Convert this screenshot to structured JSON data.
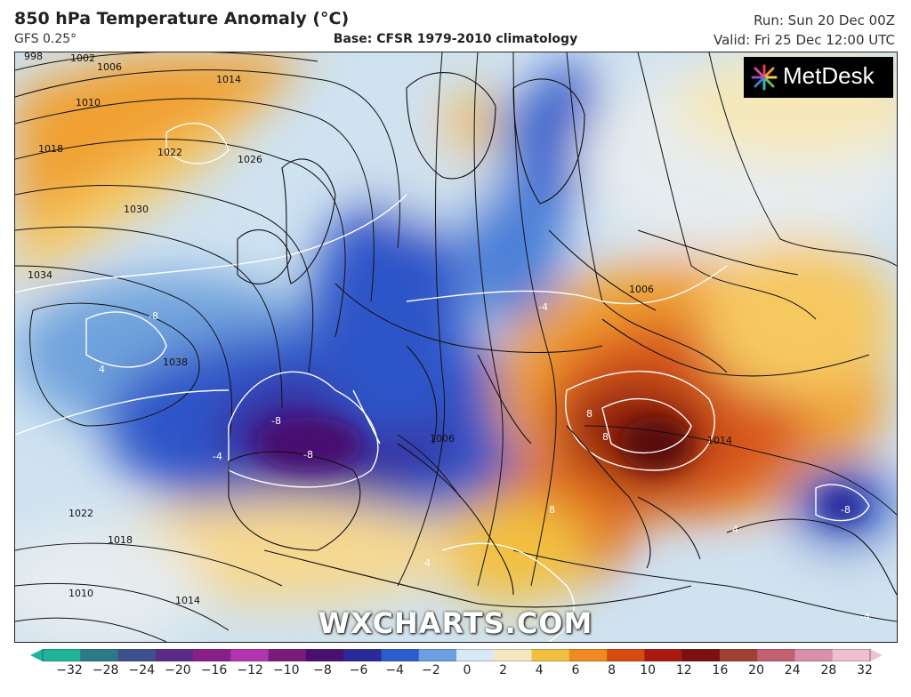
{
  "header": {
    "title": "850 hPa Temperature Anomaly (°C)",
    "model": "GFS 0.25°",
    "base": "Base: CFSR 1979-2010 climatology",
    "run": "Run: Sun 20 Dec 00Z",
    "valid": "Valid: Fri 25 Dec 12:00 UTC"
  },
  "logo": {
    "text": "MetDesk"
  },
  "watermark": "WXCHARTS.COM",
  "colorbar": {
    "ticks": [
      "−32",
      "−28",
      "−24",
      "−20",
      "−16",
      "−12",
      "−10",
      "−8",
      "−6",
      "−4",
      "−2",
      "0",
      "2",
      "4",
      "6",
      "8",
      "10",
      "12",
      "16",
      "20",
      "24",
      "28",
      "32"
    ],
    "colors": [
      "#1fb39a",
      "#2a7a8a",
      "#3d4f8c",
      "#5a2a86",
      "#8a1f8a",
      "#b234b0",
      "#7a1a7a",
      "#4a1070",
      "#2a2a9a",
      "#2d5bd0",
      "#6aa0e0",
      "#d8e8f4",
      "#f4e8c0",
      "#f2c040",
      "#f08a20",
      "#d84a10",
      "#a81a10",
      "#7a1010",
      "#a04030",
      "#c06070",
      "#d890a8",
      "#f0c0d0"
    ],
    "icon": "colorbar-arrows"
  },
  "map": {
    "isobar_labels": [
      "998",
      "1002",
      "1006",
      "1010",
      "1014",
      "1018",
      "1022",
      "1026",
      "1030",
      "1034",
      "1038",
      "1006",
      "1014",
      "1018",
      "1022",
      "1010",
      "1006",
      "1014"
    ],
    "anomaly_labels": [
      "-8",
      "-8",
      "-8",
      "4",
      "-4",
      "-4",
      "4",
      "8",
      "8",
      "8",
      "-8",
      "4",
      "-4"
    ]
  }
}
